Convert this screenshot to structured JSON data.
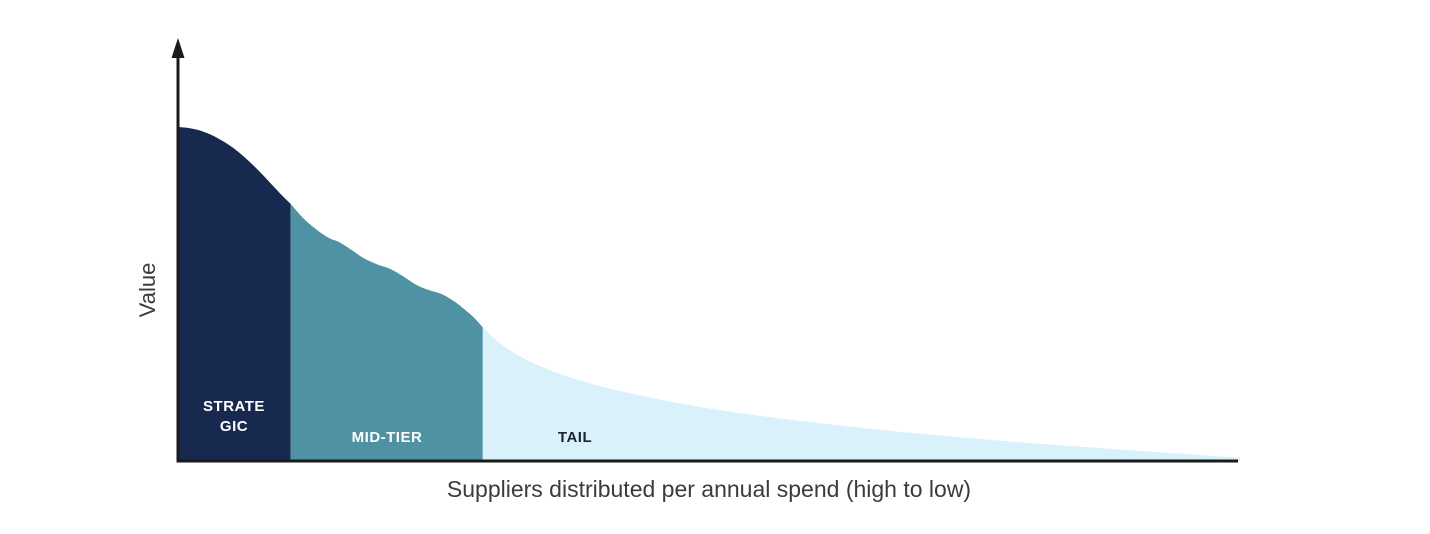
{
  "chart_data": {
    "type": "area",
    "title": "",
    "xlabel": "Suppliers distributed per annual spend (high to low)",
    "ylabel": "Value",
    "legend": "none",
    "grid": false,
    "axes": {
      "x_ticks": [],
      "y_ticks": [],
      "y_arrow": true
    },
    "colors": {
      "axis": "#1a1a1a",
      "axis_label_text": "#3b3b3b",
      "background": "#ffffff"
    },
    "segments": [
      {
        "label": "STRATEGIC",
        "label_lines": [
          "STRATE",
          "GIC"
        ],
        "color": "#17294f",
        "label_color": "#ffffff",
        "x_range": [
          0,
          0.106
        ]
      },
      {
        "label": "MID-TIER",
        "label_lines": [
          "MID-TIER"
        ],
        "color": "#4e92a4",
        "label_color": "#ffffff",
        "x_range": [
          0.106,
          0.287
        ]
      },
      {
        "label": "TAIL",
        "label_lines": [
          "TAIL"
        ],
        "color": "#d9f1fa",
        "label_color": "#1b2430",
        "x_range": [
          0.287,
          1.0
        ]
      }
    ],
    "curve_points": [
      [
        0.0,
        1.0
      ],
      [
        0.01,
        0.997
      ],
      [
        0.02,
        0.99
      ],
      [
        0.03,
        0.978
      ],
      [
        0.04,
        0.962
      ],
      [
        0.05,
        0.942
      ],
      [
        0.06,
        0.917
      ],
      [
        0.07,
        0.888
      ],
      [
        0.08,
        0.856
      ],
      [
        0.09,
        0.822
      ],
      [
        0.098,
        0.795
      ],
      [
        0.106,
        0.77
      ],
      [
        0.118,
        0.727
      ],
      [
        0.13,
        0.694
      ],
      [
        0.142,
        0.668
      ],
      [
        0.152,
        0.655
      ],
      [
        0.163,
        0.633
      ],
      [
        0.175,
        0.607
      ],
      [
        0.188,
        0.588
      ],
      [
        0.2,
        0.575
      ],
      [
        0.212,
        0.553
      ],
      [
        0.224,
        0.528
      ],
      [
        0.236,
        0.512
      ],
      [
        0.248,
        0.5
      ],
      [
        0.26,
        0.478
      ],
      [
        0.272,
        0.448
      ],
      [
        0.28,
        0.425
      ],
      [
        0.287,
        0.4
      ],
      [
        0.3,
        0.36
      ],
      [
        0.315,
        0.327
      ],
      [
        0.33,
        0.3
      ],
      [
        0.35,
        0.272
      ],
      [
        0.375,
        0.245
      ],
      [
        0.4,
        0.222
      ],
      [
        0.43,
        0.2
      ],
      [
        0.46,
        0.18
      ],
      [
        0.495,
        0.16
      ],
      [
        0.53,
        0.143
      ],
      [
        0.57,
        0.126
      ],
      [
        0.61,
        0.111
      ],
      [
        0.65,
        0.097
      ],
      [
        0.695,
        0.083
      ],
      [
        0.74,
        0.07
      ],
      [
        0.785,
        0.058
      ],
      [
        0.83,
        0.047
      ],
      [
        0.875,
        0.037
      ],
      [
        0.915,
        0.028
      ],
      [
        0.95,
        0.021
      ],
      [
        0.975,
        0.015
      ],
      [
        1.0,
        0.01
      ]
    ],
    "x_range_note": "high spend on left, low spend on right",
    "y_max_height_fraction": 1.0
  }
}
